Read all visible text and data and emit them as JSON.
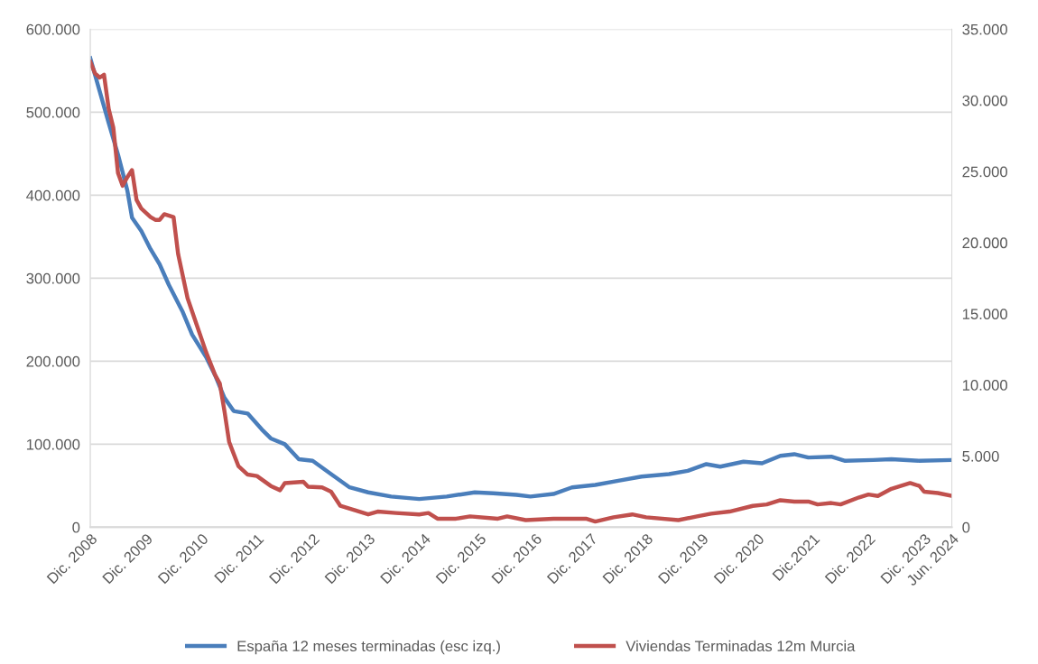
{
  "chart_data": {
    "type": "line",
    "xlim": [
      "2008-12",
      "2024-06"
    ],
    "xticks": [
      {
        "value": "2008-12",
        "label": "Dic. 2008"
      },
      {
        "value": "2009-12",
        "label": "Dic. 2009"
      },
      {
        "value": "2010-12",
        "label": "Dic. 2010"
      },
      {
        "value": "2011-12",
        "label": "Dic. 2011"
      },
      {
        "value": "2012-12",
        "label": "Dic. 2012"
      },
      {
        "value": "2013-12",
        "label": "Dic. 2013"
      },
      {
        "value": "2014-12",
        "label": "Dic. 2014"
      },
      {
        "value": "2015-12",
        "label": "Dic. 2015"
      },
      {
        "value": "2016-12",
        "label": "Dic. 2016"
      },
      {
        "value": "2017-12",
        "label": "Dic. 2017"
      },
      {
        "value": "2018-12",
        "label": "Dic. 2018"
      },
      {
        "value": "2019-12",
        "label": "Dic. 2019"
      },
      {
        "value": "2020-12",
        "label": "Dic. 2020"
      },
      {
        "value": "2021-12",
        "label": "Dic.2021"
      },
      {
        "value": "2022-12",
        "label": "Dic. 2022"
      },
      {
        "value": "2023-12",
        "label": "Dic. 2023"
      },
      {
        "value": "2024-06",
        "label": "Jun. 2024"
      }
    ],
    "ylim": [
      0,
      600000
    ],
    "yticks": [
      0,
      {
        "value": 100000,
        "label": "100.000"
      },
      {
        "value": 200000,
        "label": "200.000"
      },
      {
        "value": 300000,
        "label": "300.000"
      },
      {
        "value": 400000,
        "label": "400.000"
      },
      {
        "value": 500000,
        "label": "500.000"
      },
      {
        "value": 600000,
        "label": "600.000"
      }
    ],
    "y2lim": [
      0,
      35000
    ],
    "y2ticks": [
      0,
      {
        "value": 5000,
        "label": "5.000"
      },
      {
        "value": 10000,
        "label": "10.000"
      },
      {
        "value": 15000,
        "label": "15.000"
      },
      {
        "value": 20000,
        "label": "20.000"
      },
      {
        "value": 25000,
        "label": "25.000"
      },
      {
        "value": 30000,
        "label": "30.000"
      },
      {
        "value": 35000,
        "label": "35.000"
      }
    ],
    "grid": "y",
    "legend": "bottom",
    "marker": "none",
    "line_style": "solid",
    "series": [
      {
        "name": "España 12 meses terminadas (esc izq.)",
        "color": "#4a7ebb",
        "x": [
          "2008-12",
          "2009-02",
          "2009-04",
          "2009-06",
          "2009-08",
          "2009-09",
          "2009-11",
          "2010-01",
          "2010-03",
          "2010-05",
          "2010-08",
          "2010-10",
          "2011-01",
          "2011-03",
          "2011-05",
          "2011-07",
          "2011-10",
          "2012-01",
          "2012-03",
          "2012-06",
          "2012-09",
          "2012-12",
          "2013-04",
          "2013-08",
          "2013-12",
          "2014-05",
          "2014-11",
          "2015-05",
          "2015-11",
          "2016-03",
          "2016-08",
          "2016-11",
          "2017-04",
          "2017-08",
          "2018-01",
          "2018-06",
          "2018-11",
          "2019-05",
          "2019-09",
          "2020-01",
          "2020-04",
          "2020-09",
          "2021-01",
          "2021-05",
          "2021-08",
          "2021-11",
          "2022-04",
          "2022-07",
          "2023-01",
          "2023-05",
          "2023-11",
          "2024-06"
        ],
        "values": [
          565000,
          525000,
          487000,
          449000,
          406000,
          373000,
          357000,
          335000,
          317000,
          292000,
          259000,
          232000,
          205000,
          183000,
          156000,
          140000,
          137000,
          118000,
          107000,
          100000,
          82000,
          80000,
          64000,
          48000,
          42000,
          37000,
          34000,
          37000,
          42000,
          41000,
          39000,
          37000,
          40000,
          48000,
          51000,
          56000,
          61000,
          64000,
          68000,
          76000,
          73000,
          79000,
          77000,
          86000,
          88000,
          84000,
          85000,
          80000,
          81000,
          82000,
          80000,
          81000
        ]
      },
      {
        "name": "Viviendas Terminadas 12m Murcia",
        "color": "#c0504d",
        "axis": "y2",
        "x": [
          "2008-12",
          "2009-01",
          "2009-02",
          "2009-03",
          "2009-04",
          "2009-05",
          "2009-06",
          "2009-07",
          "2009-08",
          "2009-09",
          "2009-10",
          "2009-11",
          "2010-01",
          "2010-02",
          "2010-03",
          "2010-04",
          "2010-06",
          "2010-07",
          "2010-09",
          "2010-11",
          "2011-01",
          "2011-03",
          "2011-04",
          "2011-05",
          "2011-06",
          "2011-08",
          "2011-10",
          "2011-12",
          "2012-03",
          "2012-05",
          "2012-06",
          "2012-10",
          "2012-11",
          "2013-02",
          "2013-04",
          "2013-06",
          "2013-09",
          "2013-12",
          "2014-02",
          "2014-06",
          "2014-11",
          "2015-01",
          "2015-03",
          "2015-07",
          "2015-10",
          "2016-04",
          "2016-06",
          "2016-10",
          "2017-04",
          "2017-11",
          "2018-01",
          "2018-05",
          "2018-09",
          "2018-12",
          "2019-07",
          "2019-11",
          "2020-02",
          "2020-06",
          "2020-11",
          "2021-02",
          "2021-05",
          "2021-08",
          "2021-11",
          "2022-01",
          "2022-04",
          "2022-06",
          "2022-10",
          "2022-12",
          "2023-02",
          "2023-05",
          "2023-07",
          "2023-09",
          "2023-11",
          "2023-12",
          "2024-03",
          "2024-06"
        ],
        "values": [
          32700,
          31900,
          31600,
          31800,
          29400,
          28100,
          24900,
          24000,
          24600,
          25100,
          23000,
          22400,
          21800,
          21600,
          21600,
          22000,
          21800,
          19200,
          16100,
          14200,
          12300,
          10700,
          10100,
          8200,
          6000,
          4300,
          3700,
          3600,
          2900,
          2600,
          3100,
          3200,
          2850,
          2800,
          2500,
          1500,
          1200,
          900,
          1100,
          1000,
          900,
          1000,
          600,
          600,
          760,
          600,
          760,
          500,
          600,
          600,
          400,
          700,
          900,
          700,
          500,
          760,
          950,
          1100,
          1500,
          1600,
          1900,
          1800,
          1800,
          1600,
          1700,
          1600,
          2100,
          2300,
          2200,
          2700,
          2900,
          3100,
          2900,
          2500,
          2400,
          2200
        ]
      }
    ]
  }
}
